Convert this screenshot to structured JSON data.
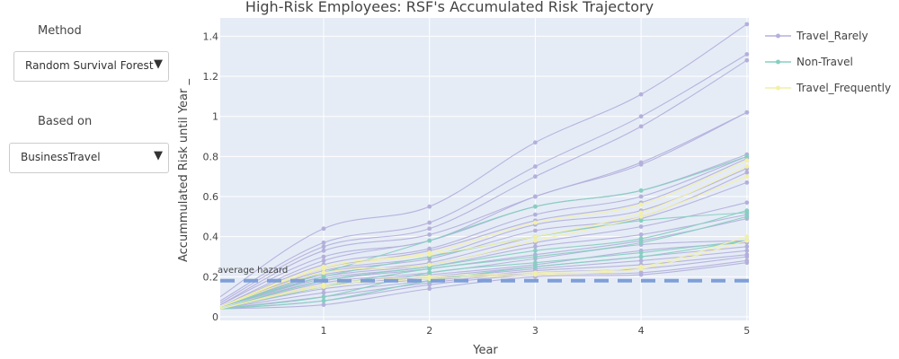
{
  "controls": {
    "method": {
      "label": "Method",
      "selected": "Random Survival Forest"
    },
    "based_on": {
      "label": "Based on",
      "selected": "BusinessTravel"
    }
  },
  "colors": {
    "Travel_Rarely": "#b4b0dc",
    "Non-Travel": "#86cfc0",
    "Travel_Frequently": "#f2f0a6",
    "average_line": "#7f9fd8",
    "plot_bg": "#e5ecf6"
  },
  "chart_data": {
    "type": "line",
    "title": "High-Risk Employees: RSF's Accumulated Risk Trajectory",
    "xlabel": "Year",
    "ylabel": "Accummulated Risk until Year _",
    "xlim": [
      0,
      5
    ],
    "ylim": [
      0,
      1.5
    ],
    "x": [
      0,
      1,
      2,
      3,
      4,
      5
    ],
    "x_ticks": [
      "1",
      "2",
      "3",
      "4",
      "5"
    ],
    "y_ticks": [
      "0",
      "0.2",
      "0.4",
      "0.6",
      "0.8",
      "1",
      "1.2",
      "1.4"
    ],
    "grid": true,
    "legend_position": "right",
    "legend": [
      "Travel_Rarely",
      "Non-Travel",
      "Travel_Frequently"
    ],
    "annotation": {
      "text": "average hazard",
      "y": 0.18
    },
    "series": [
      {
        "group": "Travel_Rarely",
        "values": [
          0.1,
          0.44,
          0.55,
          0.87,
          1.11,
          1.46
        ]
      },
      {
        "group": "Travel_Rarely",
        "values": [
          0.08,
          0.37,
          0.47,
          0.75,
          1.0,
          1.31
        ]
      },
      {
        "group": "Travel_Rarely",
        "values": [
          0.07,
          0.35,
          0.44,
          0.7,
          0.95,
          1.28
        ]
      },
      {
        "group": "Travel_Rarely",
        "values": [
          0.06,
          0.33,
          0.41,
          0.6,
          0.77,
          1.02
        ]
      },
      {
        "group": "Travel_Rarely",
        "values": [
          0.06,
          0.3,
          0.38,
          0.6,
          0.76,
          1.02
        ]
      },
      {
        "group": "Travel_Rarely",
        "values": [
          0.05,
          0.28,
          0.38,
          0.55,
          0.63,
          0.81
        ]
      },
      {
        "group": "Travel_Rarely",
        "values": [
          0.05,
          0.26,
          0.34,
          0.51,
          0.6,
          0.8
        ]
      },
      {
        "group": "Travel_Rarely",
        "values": [
          0.05,
          0.24,
          0.33,
          0.48,
          0.57,
          0.79
        ]
      },
      {
        "group": "Travel_Rarely",
        "values": [
          0.05,
          0.23,
          0.3,
          0.46,
          0.53,
          0.74
        ]
      },
      {
        "group": "Travel_Rarely",
        "values": [
          0.05,
          0.22,
          0.29,
          0.43,
          0.5,
          0.72
        ]
      },
      {
        "group": "Travel_Rarely",
        "values": [
          0.05,
          0.21,
          0.27,
          0.4,
          0.49,
          0.67
        ]
      },
      {
        "group": "Travel_Rarely",
        "values": [
          0.05,
          0.2,
          0.26,
          0.37,
          0.45,
          0.57
        ]
      },
      {
        "group": "Travel_Rarely",
        "values": [
          0.05,
          0.19,
          0.25,
          0.35,
          0.41,
          0.51
        ]
      },
      {
        "group": "Travel_Rarely",
        "values": [
          0.05,
          0.18,
          0.24,
          0.31,
          0.38,
          0.49
        ]
      },
      {
        "group": "Travel_Rarely",
        "values": [
          0.04,
          0.17,
          0.22,
          0.29,
          0.36,
          0.38
        ]
      },
      {
        "group": "Travel_Rarely",
        "values": [
          0.04,
          0.16,
          0.21,
          0.26,
          0.33,
          0.37
        ]
      },
      {
        "group": "Travel_Rarely",
        "values": [
          0.04,
          0.15,
          0.2,
          0.25,
          0.3,
          0.35
        ]
      },
      {
        "group": "Travel_Rarely",
        "values": [
          0.04,
          0.14,
          0.19,
          0.24,
          0.28,
          0.33
        ]
      },
      {
        "group": "Travel_Rarely",
        "values": [
          0.04,
          0.12,
          0.18,
          0.23,
          0.26,
          0.31
        ]
      },
      {
        "group": "Travel_Rarely",
        "values": [
          0.04,
          0.1,
          0.17,
          0.22,
          0.24,
          0.3
        ]
      },
      {
        "group": "Travel_Rarely",
        "values": [
          0.04,
          0.08,
          0.16,
          0.21,
          0.22,
          0.28
        ]
      },
      {
        "group": "Travel_Rarely",
        "values": [
          0.04,
          0.06,
          0.14,
          0.2,
          0.21,
          0.27
        ]
      },
      {
        "group": "Non-Travel",
        "values": [
          0.05,
          0.22,
          0.38,
          0.55,
          0.63,
          0.8
        ]
      },
      {
        "group": "Non-Travel",
        "values": [
          0.05,
          0.2,
          0.3,
          0.4,
          0.48,
          0.52
        ]
      },
      {
        "group": "Non-Travel",
        "values": [
          0.04,
          0.18,
          0.25,
          0.33,
          0.39,
          0.53
        ]
      },
      {
        "group": "Non-Travel",
        "values": [
          0.04,
          0.15,
          0.24,
          0.3,
          0.37,
          0.5
        ]
      },
      {
        "group": "Non-Travel",
        "values": [
          0.04,
          0.1,
          0.22,
          0.27,
          0.32,
          0.38
        ]
      },
      {
        "group": "Non-Travel",
        "values": [
          0.04,
          0.08,
          0.18,
          0.25,
          0.3,
          0.38
        ]
      },
      {
        "group": "Travel_Frequently",
        "values": [
          0.05,
          0.25,
          0.32,
          0.47,
          0.56,
          0.78
        ]
      },
      {
        "group": "Travel_Frequently",
        "values": [
          0.05,
          0.24,
          0.31,
          0.4,
          0.52,
          0.75
        ]
      },
      {
        "group": "Travel_Frequently",
        "values": [
          0.05,
          0.22,
          0.26,
          0.38,
          0.5,
          0.7
        ]
      },
      {
        "group": "Travel_Frequently",
        "values": [
          0.04,
          0.16,
          0.2,
          0.22,
          0.25,
          0.4
        ]
      },
      {
        "group": "Travel_Frequently",
        "values": [
          0.04,
          0.15,
          0.19,
          0.21,
          0.24,
          0.38
        ]
      }
    ]
  }
}
